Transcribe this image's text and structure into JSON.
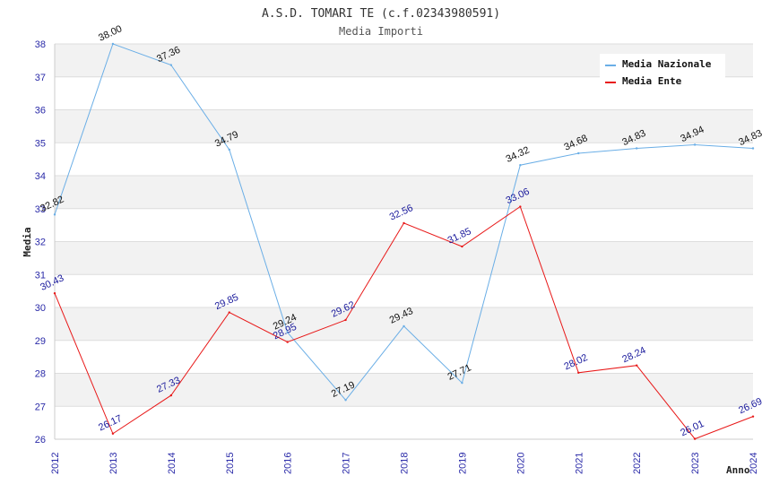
{
  "chart_data": {
    "type": "line",
    "title": "A.S.D. TOMARI TE (c.f.02343980591)",
    "subtitle": "Media Importi",
    "xlabel": "Anno",
    "ylabel": "Media",
    "ylim": [
      26,
      38
    ],
    "yticks": [
      "26",
      "27",
      "28",
      "29",
      "30",
      "31",
      "32",
      "33",
      "34",
      "35",
      "36",
      "37",
      "38"
    ],
    "categories": [
      "2012",
      "2013",
      "2014",
      "2015",
      "2016",
      "2017",
      "2018",
      "2019",
      "2020",
      "2021",
      "2022",
      "2023",
      "2024"
    ],
    "series": [
      {
        "name": "Media Nazionale",
        "color": "#6aaee6",
        "values": [
          32.82,
          38.0,
          37.36,
          34.79,
          29.24,
          27.19,
          29.43,
          27.71,
          34.32,
          34.68,
          34.83,
          34.94,
          34.83
        ],
        "labels": [
          "32.82",
          "38.00",
          "37.36",
          "34.79",
          "29.24",
          "27.19",
          "29.43",
          "27.71",
          "34.32",
          "34.68",
          "34.83",
          "34.94",
          "34.83"
        ]
      },
      {
        "name": "Media Ente",
        "color": "#e81818",
        "values": [
          30.43,
          26.17,
          27.33,
          29.85,
          28.95,
          29.62,
          32.56,
          31.85,
          33.06,
          28.02,
          28.24,
          26.01,
          26.69
        ],
        "labels": [
          "30.43",
          "26.17",
          "27.33",
          "29.85",
          "28.95",
          "29.62",
          "32.56",
          "31.85",
          "33.06",
          "28.02",
          "28.24",
          "26.01",
          "26.69"
        ]
      }
    ],
    "legend": {
      "position": "top-right"
    },
    "grid": true
  }
}
